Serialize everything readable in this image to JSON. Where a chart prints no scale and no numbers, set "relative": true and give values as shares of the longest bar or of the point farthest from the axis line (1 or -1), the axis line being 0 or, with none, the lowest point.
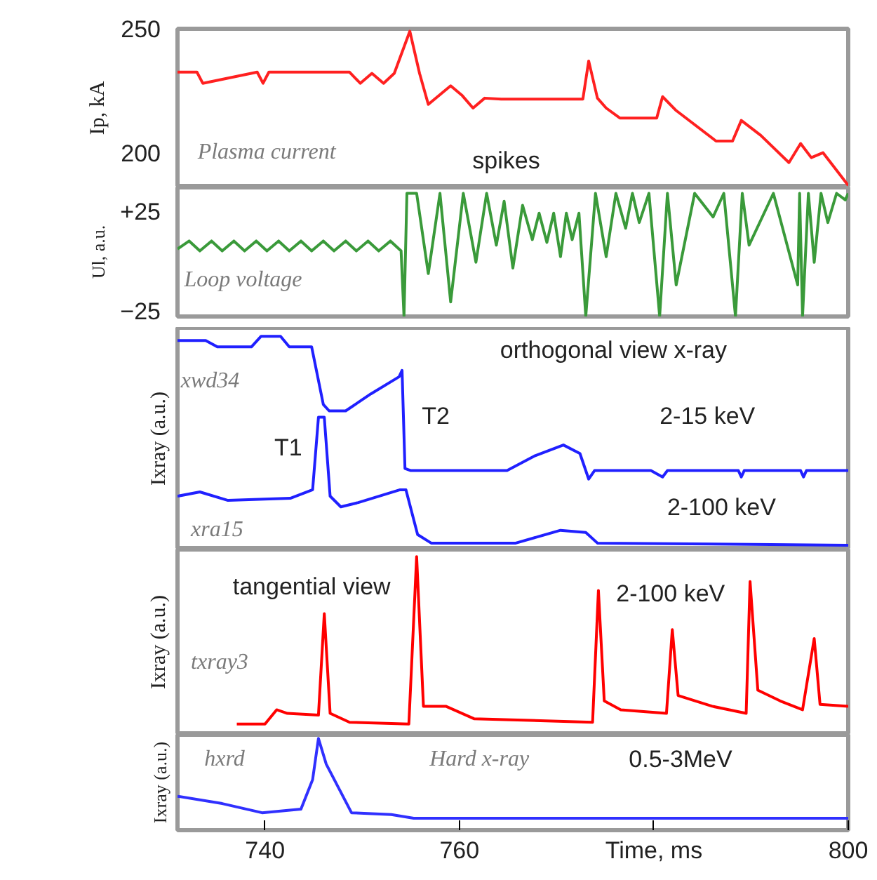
{
  "chart_data": [
    {
      "type": "line",
      "ylabel": "Ip, kA",
      "xlim": [
        731,
        800
      ],
      "ylim": [
        186,
        250
      ],
      "yticks": [
        200,
        250
      ],
      "tick_labels": "y",
      "annotations": [
        "Plasma current",
        "spikes"
      ],
      "series": [
        {
          "color": "#ff2020",
          "x": [
            731.0,
            733.0,
            733.6,
            739.2,
            739.8,
            740.4,
            748.7,
            749.8,
            751.0,
            752.2,
            753.3,
            754.9,
            755.9,
            756.8,
            759.1,
            760.3,
            761.4,
            762.6,
            764.3,
            772.7,
            773.3,
            774.2,
            775.1,
            776.5,
            780.3,
            780.9,
            782.3,
            786.4,
            788.1,
            789.0,
            791.0,
            793.9,
            795.1,
            796.2,
            797.4,
            800.0
          ],
          "values": [
            232.5,
            232.5,
            228,
            232.5,
            228,
            232.5,
            232.5,
            228,
            232,
            228,
            232,
            249,
            232,
            219.5,
            227,
            223,
            218,
            222,
            221.6,
            221.6,
            237,
            222,
            218,
            214,
            214,
            222.6,
            217,
            204.7,
            204.7,
            213,
            207,
            196,
            203.7,
            198,
            200,
            186.8
          ]
        }
      ]
    },
    {
      "type": "line",
      "ylabel": "Ul, a.u.",
      "xlim": [
        731,
        800
      ],
      "ylim": [
        -28,
        37
      ],
      "yticks": [
        {
          "value": 25,
          "label": "+25"
        },
        -25
      ],
      "tick_labels": "y",
      "annotations": [
        "Loop voltage"
      ],
      "series": [
        {
          "color": "#3a9a3a",
          "x": [
            731.0,
            732.2,
            733.3,
            734.5,
            735.6,
            736.8,
            737.9,
            739.1,
            740.2,
            741.4,
            742.5,
            743.7,
            744.8,
            746.0,
            747.1,
            748.3,
            749.4,
            750.6,
            751.7,
            752.9,
            754.0,
            754.3,
            754.6,
            755.6,
            756.8,
            758.0,
            759.1,
            760.4,
            761.7,
            762.8,
            763.8,
            764.6,
            765.5,
            766.5,
            767.5,
            768.2,
            769.0,
            769.7,
            770.4,
            771.0,
            771.6,
            772.3,
            773.0,
            774.0,
            775.1,
            776.1,
            777.1,
            777.8,
            778.5,
            779.5,
            780.6,
            781.4,
            782.3,
            784.2,
            786.1,
            787.2,
            788.4,
            789.1,
            789.8,
            792.3,
            794.8,
            795.0,
            795.3,
            795.9,
            796.5,
            797.2,
            797.9,
            798.8,
            799.7,
            800.0
          ],
          "values": [
            6,
            10,
            5,
            10,
            5,
            10,
            5,
            10,
            5,
            10,
            5,
            10,
            5,
            10,
            5,
            10,
            5,
            10,
            5,
            10,
            5,
            -28,
            34,
            34,
            -6.4,
            34,
            -20.7,
            34,
            -0.7,
            34,
            7.9,
            30,
            -3.6,
            28,
            10.7,
            24,
            9.3,
            24,
            2.1,
            24,
            10.7,
            24,
            -27.9,
            34,
            2.1,
            34,
            16.4,
            34,
            19.3,
            34,
            -27.9,
            34,
            -12.1,
            34,
            22.1,
            34,
            -27.9,
            34,
            7.9,
            34,
            -12.1,
            34,
            -27.9,
            34,
            -0.7,
            34,
            19.3,
            34,
            30.7,
            34
          ]
        }
      ]
    },
    {
      "type": "line",
      "ylabel": "Ixray (a.u.)",
      "xlim": [
        731,
        800
      ],
      "relative": true,
      "tick_labels": false,
      "annotations": [
        "orthogonal view x-ray",
        "xwd34",
        "T1",
        "T2",
        "2-15 keV",
        "2-100  keV",
        "xra15"
      ],
      "series": [
        {
          "color": "#2020ff",
          "x": [
            731.0,
            733.9,
            735.1,
            738.6,
            739.6,
            741.6,
            742.5,
            744.8,
            746.0,
            746.6,
            748.3,
            750.9,
            753.8,
            754.1,
            754.4,
            755.0,
            764.9,
            767.8,
            770.7,
            772.4,
            773.3,
            773.9,
            779.7,
            780.9,
            781.4,
            788.7,
            789.0,
            789.3,
            795.1,
            795.4,
            795.7,
            800.0
          ],
          "values": [
            0.98,
            0.98,
            0.95,
            0.95,
            1.0,
            1.0,
            0.95,
            0.95,
            0.68,
            0.65,
            0.65,
            0.73,
            0.81,
            0.84,
            0.38,
            0.37,
            0.37,
            0.44,
            0.49,
            0.45,
            0.33,
            0.37,
            0.37,
            0.34,
            0.37,
            0.37,
            0.34,
            0.37,
            0.37,
            0.34,
            0.37,
            0.37
          ]
        },
        {
          "color": "#2020ff",
          "x": [
            731.0,
            733.3,
            736.2,
            742.6,
            744.9,
            745.5,
            746.1,
            746.7,
            747.8,
            749.6,
            753.9,
            754.5,
            755.7,
            757.1,
            765.8,
            770.4,
            773.0,
            774.2,
            800.0
          ],
          "values": [
            0.25,
            0.27,
            0.23,
            0.24,
            0.28,
            0.62,
            0.62,
            0.25,
            0.2,
            0.22,
            0.28,
            0.28,
            0.07,
            0.03,
            0.03,
            0.09,
            0.08,
            0.03,
            0.02
          ]
        }
      ]
    },
    {
      "type": "line",
      "ylabel": "Ixray (a.u.)",
      "xlim": [
        731,
        800
      ],
      "relative": true,
      "tick_labels": false,
      "annotations": [
        "tangential view",
        "2-100  keV",
        "txray3"
      ],
      "series": [
        {
          "color": "#ff0000",
          "x": [
            737.1,
            740.0,
            741.2,
            742.3,
            745.5,
            746.1,
            746.7,
            748.7,
            754.8,
            755.6,
            756.3,
            758.6,
            761.5,
            773.7,
            774.3,
            774.9,
            776.6,
            781.3,
            781.9,
            782.5,
            786.0,
            789.5,
            789.9,
            790.7,
            793.0,
            795.3,
            796.5,
            797.1,
            800.0
          ],
          "values": [
            0.06,
            0.06,
            0.14,
            0.12,
            0.11,
            0.68,
            0.12,
            0.07,
            0.06,
            1.0,
            0.16,
            0.16,
            0.09,
            0.07,
            0.81,
            0.19,
            0.14,
            0.12,
            0.59,
            0.22,
            0.16,
            0.12,
            0.86,
            0.25,
            0.19,
            0.14,
            0.54,
            0.17,
            0.16
          ]
        }
      ]
    },
    {
      "type": "line",
      "ylabel": "Ixray (a.u.)",
      "xlim": [
        731,
        800
      ],
      "relative": true,
      "tick_labels": "x",
      "xticks": [
        740,
        760,
        {
          "value": 780,
          "label": "Time, ms"
        },
        800
      ],
      "annotations": [
        "hxrd",
        "Hard x-ray",
        "0.5-3MeV"
      ],
      "series": [
        {
          "color": "#3030ff",
          "x": [
            731.0,
            735.6,
            739.7,
            743.7,
            744.9,
            745.5,
            746.3,
            748.9,
            753.0,
            755.3,
            800.0
          ],
          "values": [
            0.37,
            0.29,
            0.19,
            0.23,
            0.55,
            1.0,
            0.72,
            0.19,
            0.17,
            0.13,
            0.13
          ]
        }
      ]
    }
  ]
}
